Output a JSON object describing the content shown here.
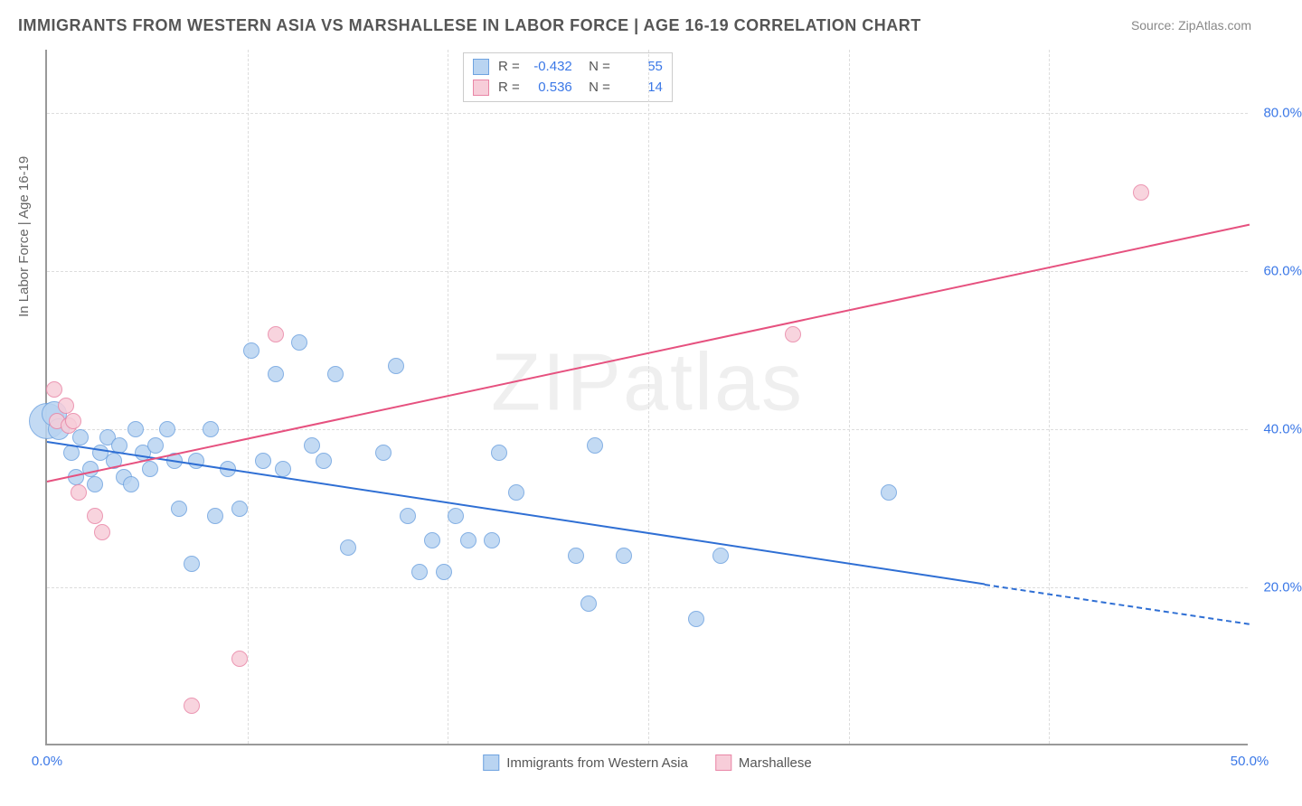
{
  "title": "IMMIGRANTS FROM WESTERN ASIA VS MARSHALLESE IN LABOR FORCE | AGE 16-19 CORRELATION CHART",
  "source": "Source: ZipAtlas.com",
  "watermark": "ZIPatlas",
  "ylabel": "In Labor Force | Age 16-19",
  "chart": {
    "type": "scatter",
    "xlim": [
      0,
      50
    ],
    "ylim": [
      0,
      88
    ],
    "xtick_values": [
      0,
      50
    ],
    "xtick_labels": [
      "0.0%",
      "50.0%"
    ],
    "ytick_values": [
      20,
      40,
      60,
      80
    ],
    "ytick_labels": [
      "20.0%",
      "40.0%",
      "60.0%",
      "80.0%"
    ],
    "xgrid_minor": [
      8.33,
      16.66,
      25,
      33.33,
      41.66
    ],
    "grid_color": "#dddddd",
    "axis_color": "#999999",
    "background_color": "#ffffff"
  },
  "series": [
    {
      "name": "Immigrants from Western Asia",
      "fill": "#b9d4f1",
      "stroke": "#6fa3e0",
      "stroke_width": 1.2,
      "marker_radius": 9,
      "opacity": 0.85,
      "R": "-0.432",
      "N": "55",
      "trend": {
        "x1": 0,
        "y1": 38.5,
        "x2": 39,
        "y2": 20.5,
        "extend_x": 50,
        "extend_y": 15.5,
        "color": "#2f6fd4"
      },
      "points": [
        {
          "x": 0,
          "y": 41,
          "r": 20
        },
        {
          "x": 0.3,
          "y": 42,
          "r": 14
        },
        {
          "x": 0.5,
          "y": 40,
          "r": 12
        },
        {
          "x": 1,
          "y": 37
        },
        {
          "x": 1.2,
          "y": 34
        },
        {
          "x": 1.4,
          "y": 39
        },
        {
          "x": 1.8,
          "y": 35
        },
        {
          "x": 2,
          "y": 33
        },
        {
          "x": 2.2,
          "y": 37
        },
        {
          "x": 2.5,
          "y": 39
        },
        {
          "x": 2.8,
          "y": 36
        },
        {
          "x": 3,
          "y": 38
        },
        {
          "x": 3.2,
          "y": 34
        },
        {
          "x": 3.5,
          "y": 33
        },
        {
          "x": 3.7,
          "y": 40
        },
        {
          "x": 4,
          "y": 37
        },
        {
          "x": 4.3,
          "y": 35
        },
        {
          "x": 4.5,
          "y": 38
        },
        {
          "x": 5,
          "y": 40
        },
        {
          "x": 5.3,
          "y": 36
        },
        {
          "x": 5.5,
          "y": 30
        },
        {
          "x": 6,
          "y": 23
        },
        {
          "x": 6.2,
          "y": 36
        },
        {
          "x": 6.8,
          "y": 40
        },
        {
          "x": 7,
          "y": 29
        },
        {
          "x": 7.5,
          "y": 35
        },
        {
          "x": 8,
          "y": 30
        },
        {
          "x": 8.5,
          "y": 50
        },
        {
          "x": 9,
          "y": 36
        },
        {
          "x": 9.5,
          "y": 47
        },
        {
          "x": 9.8,
          "y": 35
        },
        {
          "x": 10.5,
          "y": 51
        },
        {
          "x": 11,
          "y": 38
        },
        {
          "x": 11.5,
          "y": 36
        },
        {
          "x": 12,
          "y": 47
        },
        {
          "x": 12.5,
          "y": 25
        },
        {
          "x": 14,
          "y": 37
        },
        {
          "x": 14.5,
          "y": 48
        },
        {
          "x": 15,
          "y": 29
        },
        {
          "x": 15.5,
          "y": 22
        },
        {
          "x": 16,
          "y": 26
        },
        {
          "x": 16.5,
          "y": 22
        },
        {
          "x": 17,
          "y": 29
        },
        {
          "x": 17.5,
          "y": 26
        },
        {
          "x": 18.5,
          "y": 26
        },
        {
          "x": 18.8,
          "y": 37
        },
        {
          "x": 19.5,
          "y": 32
        },
        {
          "x": 22,
          "y": 24
        },
        {
          "x": 22.5,
          "y": 18
        },
        {
          "x": 22.8,
          "y": 38
        },
        {
          "x": 24,
          "y": 24
        },
        {
          "x": 27,
          "y": 16
        },
        {
          "x": 28,
          "y": 24
        },
        {
          "x": 35,
          "y": 32
        }
      ]
    },
    {
      "name": "Marshallese",
      "fill": "#f7cdd9",
      "stroke": "#e986a6",
      "stroke_width": 1.2,
      "marker_radius": 9,
      "opacity": 0.85,
      "R": "0.536",
      "N": "14",
      "trend": {
        "x1": 0,
        "y1": 33.5,
        "x2": 50,
        "y2": 66,
        "color": "#e6517f"
      },
      "points": [
        {
          "x": 0.3,
          "y": 45
        },
        {
          "x": 0.4,
          "y": 41
        },
        {
          "x": 0.8,
          "y": 43
        },
        {
          "x": 0.9,
          "y": 40.5
        },
        {
          "x": 1.1,
          "y": 41
        },
        {
          "x": 1.3,
          "y": 32
        },
        {
          "x": 2,
          "y": 29
        },
        {
          "x": 2.3,
          "y": 27
        },
        {
          "x": 6,
          "y": 5
        },
        {
          "x": 8,
          "y": 11
        },
        {
          "x": 9.5,
          "y": 52
        },
        {
          "x": 31,
          "y": 52
        },
        {
          "x": 45.5,
          "y": 70
        }
      ]
    }
  ],
  "legend": {
    "items": [
      {
        "label": "Immigrants from Western Asia",
        "fill": "#b9d4f1",
        "stroke": "#6fa3e0"
      },
      {
        "label": "Marshallese",
        "fill": "#f7cdd9",
        "stroke": "#e986a6"
      }
    ]
  }
}
